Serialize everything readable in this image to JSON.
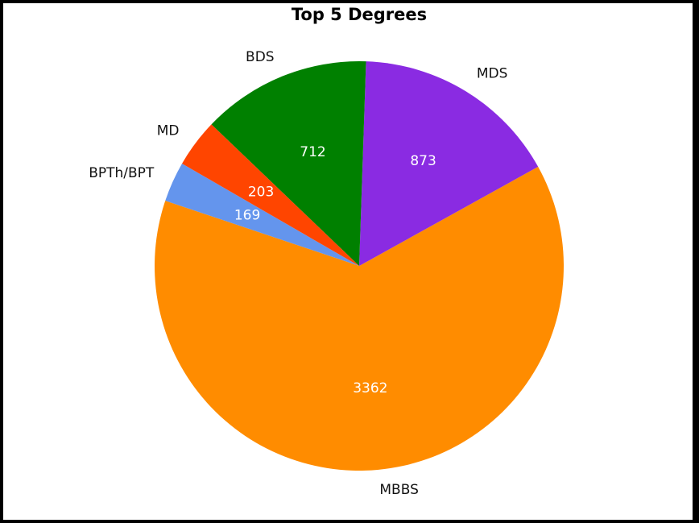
{
  "chart_data": {
    "type": "pie",
    "title": "Top 5 Degrees",
    "start_angle_deg": 150,
    "direction": "counterclockwise",
    "slices": [
      {
        "label": "BPTh/BPT",
        "value": 169,
        "color": "#6495ED"
      },
      {
        "label": "MBBS",
        "value": 3362,
        "color": "#FF8C00"
      },
      {
        "label": "MDS",
        "value": 873,
        "color": "#8A2BE2"
      },
      {
        "label": "BDS",
        "value": 712,
        "color": "#008000"
      },
      {
        "label": "MD",
        "value": 203,
        "color": "#FF4500"
      }
    ]
  }
}
